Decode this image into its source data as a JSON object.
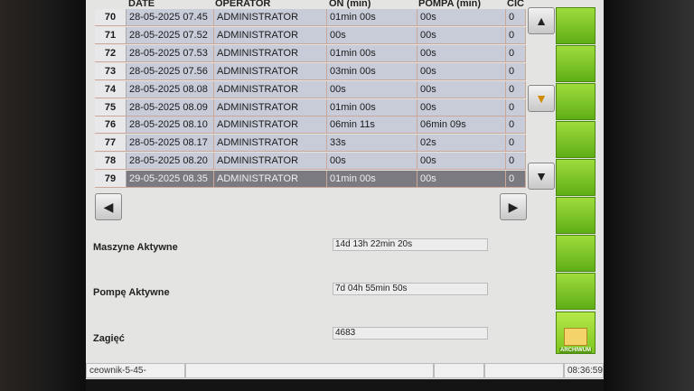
{
  "table": {
    "columns": [
      "DATE",
      "OPERATOR",
      "ON (min)",
      "POMPA (min)",
      "CIC"
    ],
    "rows": [
      {
        "n": "70",
        "date": "28-05-2025 07.45",
        "operator": "ADMINISTRATOR",
        "on": "01min 00s",
        "pompa": "00s",
        "cic": "0"
      },
      {
        "n": "71",
        "date": "28-05-2025 07.52",
        "operator": "ADMINISTRATOR",
        "on": "00s",
        "pompa": "00s",
        "cic": "0"
      },
      {
        "n": "72",
        "date": "28-05-2025 07.53",
        "operator": "ADMINISTRATOR",
        "on": "01min 00s",
        "pompa": "00s",
        "cic": "0"
      },
      {
        "n": "73",
        "date": "28-05-2025 07.56",
        "operator": "ADMINISTRATOR",
        "on": "03min 00s",
        "pompa": "00s",
        "cic": "0"
      },
      {
        "n": "74",
        "date": "28-05-2025 08.08",
        "operator": "ADMINISTRATOR",
        "on": "00s",
        "pompa": "00s",
        "cic": "0"
      },
      {
        "n": "75",
        "date": "28-05-2025 08.09",
        "operator": "ADMINISTRATOR",
        "on": "01min 00s",
        "pompa": "00s",
        "cic": "0"
      },
      {
        "n": "76",
        "date": "28-05-2025 08.10",
        "operator": "ADMINISTRATOR",
        "on": "06min 11s",
        "pompa": "06min 09s",
        "cic": "0"
      },
      {
        "n": "77",
        "date": "28-05-2025 08.17",
        "operator": "ADMINISTRATOR",
        "on": "33s",
        "pompa": "02s",
        "cic": "0"
      },
      {
        "n": "78",
        "date": "28-05-2025 08.20",
        "operator": "ADMINISTRATOR",
        "on": "00s",
        "pompa": "00s",
        "cic": "0"
      },
      {
        "n": "79",
        "date": "29-05-2025 08.35",
        "operator": "ADMINISTRATOR",
        "on": "01min 00s",
        "pompa": "00s",
        "cic": "0"
      }
    ],
    "selected_row": "79"
  },
  "summary": {
    "machines_label": "Maszyne Aktywne",
    "machines_value": "14d 13h 22min 20s",
    "pump_label": "Pompę Aktywne",
    "pump_value": "7d 04h 55min 50s",
    "bends_label": "Zagięć",
    "bends_value": "4683"
  },
  "archive_label": "ARCHIWUM",
  "status": {
    "program": "ceownik-5-45-",
    "time": "08:36:59"
  },
  "colors": {
    "accent_green": "#7cc520",
    "selected_row": "#7a7a80",
    "row_bg": "#c8ccd8"
  }
}
